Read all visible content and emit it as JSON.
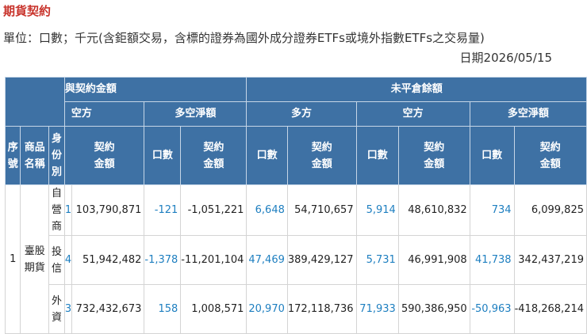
{
  "title": "期貨契約",
  "unit_note": "單位：口數；千元(含鉅額交易，含標的證券為國外成分證券ETFs或境外指數ETFs之交易量)",
  "date": "日期2026/05/15",
  "header": {
    "group_traded": "與契約金額",
    "group_open": "未平倉餘額",
    "short": "空方",
    "net": "多空淨額",
    "long": "多方",
    "seq": "序號",
    "product": "商品名稱",
    "identity": "身份別",
    "contracts": "口數",
    "amount": "契約金額"
  },
  "rows": [
    {
      "seq": "1",
      "product": "臺股期貨",
      "identity": "自營商",
      "clip": "1",
      "t_short_amt": "103,790,871",
      "t_net_qty": "-121",
      "t_net_amt": "-1,051,221",
      "o_long_qty": "6,648",
      "o_long_amt": "54,710,657",
      "o_short_qty": "5,914",
      "o_short_amt": "48,610,832",
      "o_net_qty": "734",
      "o_net_amt": "6,099,825"
    },
    {
      "identity": "投信",
      "clip": "4",
      "t_short_amt": "51,942,482",
      "t_net_qty": "-1,378",
      "t_net_amt": "-11,201,104",
      "o_long_qty": "47,469",
      "o_long_amt": "389,429,127",
      "o_short_qty": "5,731",
      "o_short_amt": "46,991,908",
      "o_net_qty": "41,738",
      "o_net_amt": "342,437,219"
    },
    {
      "identity": "外資",
      "clip": "3",
      "t_short_amt": "732,432,673",
      "t_net_qty": "158",
      "t_net_amt": "1,008,571",
      "o_long_qty": "20,970",
      "o_long_amt": "172,118,736",
      "o_short_qty": "71,933",
      "o_short_amt": "590,386,950",
      "o_net_qty": "-50,963",
      "o_net_amt": "-418,268,214"
    }
  ]
}
